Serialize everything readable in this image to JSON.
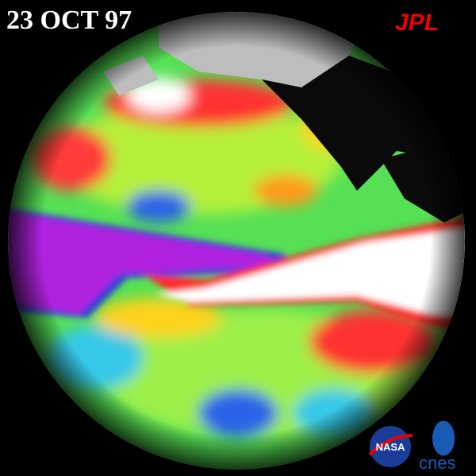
{
  "header": {
    "date": "23 OCT 97",
    "logo": "JPL"
  },
  "footer": {
    "logos": [
      "NASA",
      "cnes"
    ]
  }
}
